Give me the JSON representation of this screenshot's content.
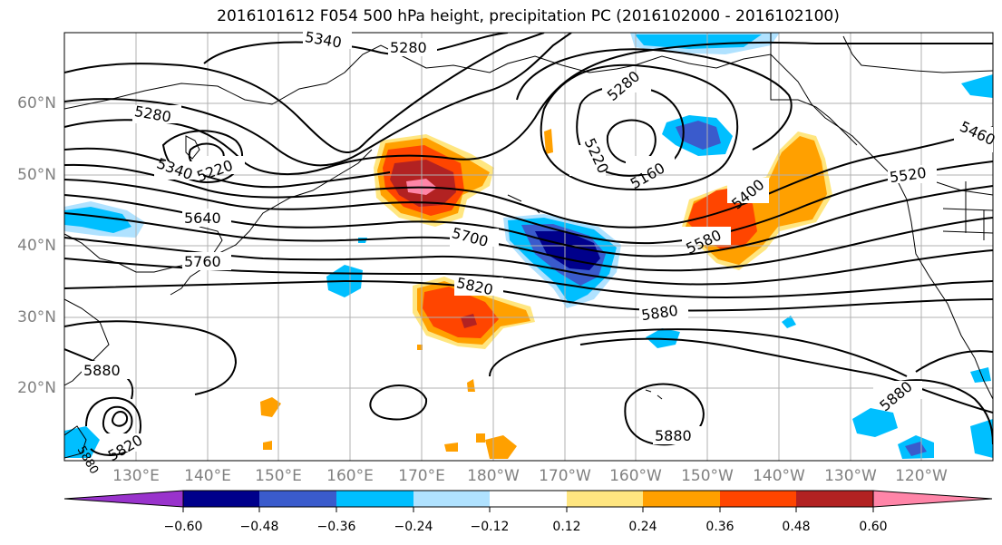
{
  "title": "2016101612 F054 500 hPa height, precipitation PC (2016102000 - 2016102100)",
  "map": {
    "lat_labels": [
      "60°N",
      "50°N",
      "40°N",
      "30°N",
      "20°N"
    ],
    "lon_labels": [
      "130°E",
      "140°E",
      "150°E",
      "160°E",
      "170°E",
      "180°W",
      "170°W",
      "160°W",
      "150°W",
      "140°W",
      "130°W",
      "120°W"
    ],
    "contour_labels": [
      "5340",
      "5280",
      "5280",
      "5280",
      "5220",
      "5160",
      "5340",
      "5220",
      "5640",
      "5760",
      "5700",
      "5820",
      "5880",
      "5880",
      "5880",
      "5820",
      "5880",
      "5580",
      "5400",
      "5460",
      "5520",
      "5880"
    ]
  },
  "colorbar": {
    "ticks": [
      "−0.60",
      "−0.48",
      "−0.36",
      "−0.24",
      "−0.12",
      "0.12",
      "0.24",
      "0.36",
      "0.48",
      "0.60"
    ],
    "colors": [
      "#9933cc",
      "#00008b",
      "#3a5bcc",
      "#00bfff",
      "#b0e2ff",
      "#ffffff",
      "#ffe680",
      "#ffa000",
      "#ff4500",
      "#b22222",
      "#ff85a8",
      "#ff85a8"
    ]
  },
  "colors": {
    "neg_strong": "#00008b",
    "neg_mid": "#3a5bcc",
    "neg_light": "#00bfff",
    "neg_faint": "#b0e2ff",
    "pos_faint": "#ffe680",
    "pos_light": "#ffa000",
    "pos_mid": "#ff4500",
    "pos_strong": "#b22222",
    "pos_max": "#ff85a8"
  }
}
